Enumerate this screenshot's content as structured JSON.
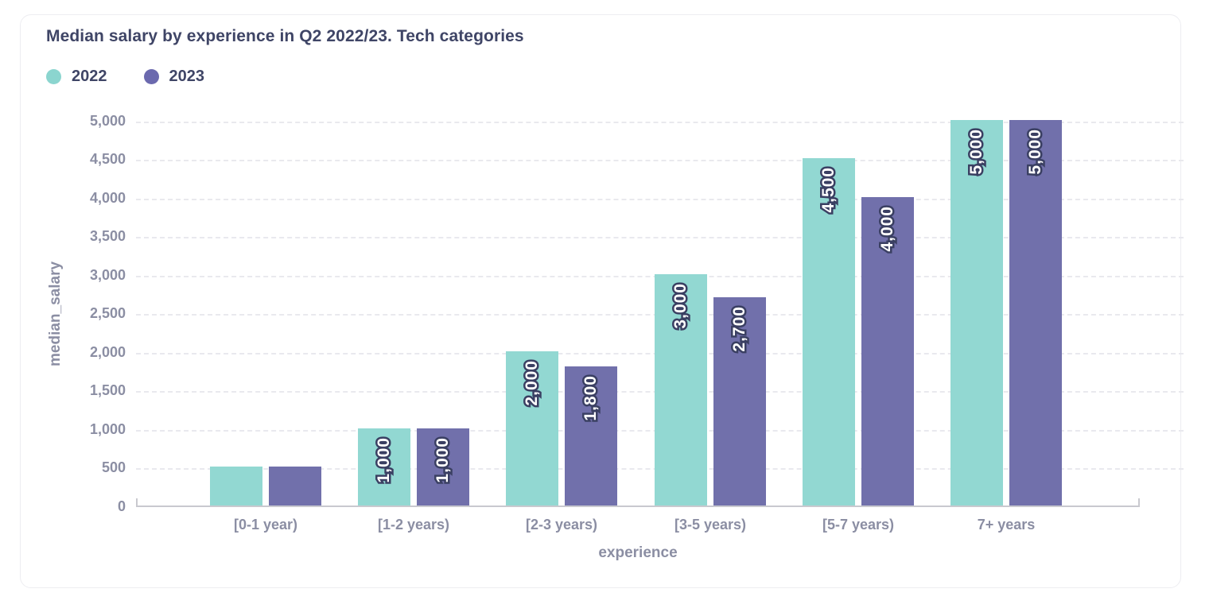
{
  "chart_data": {
    "type": "bar",
    "title": "Median salary by experience in Q2 2022/23. Tech categories",
    "xlabel": "experience",
    "ylabel": "median_salary",
    "categories": [
      "[0-1 year)",
      "[1-2 years)",
      "[2-3 years)",
      "[3-5 years)",
      "[5-7 years)",
      "7+ years"
    ],
    "series": [
      {
        "name": "2022",
        "color": "#92d8d2",
        "legend_color": "#8bd5cf",
        "values": [
          500,
          1000,
          2000,
          3000,
          4500,
          5000
        ],
        "bar_labels": [
          "",
          "1,000",
          "2,000",
          "3,000",
          "4,500",
          "5,000"
        ]
      },
      {
        "name": "2023",
        "color": "#7170ab",
        "legend_color": "#6b69ae",
        "values": [
          500,
          1000,
          1800,
          2700,
          4000,
          5000
        ],
        "bar_labels": [
          "",
          "1,000",
          "1,800",
          "2,700",
          "4,000",
          "5,000"
        ]
      }
    ],
    "ylim": [
      0,
      5000
    ],
    "ytick_step": 500,
    "ytick_labels": [
      "0",
      "500",
      "1,000",
      "1,500",
      "2,000",
      "2,500",
      "3,000",
      "3,500",
      "4,000",
      "4,500",
      "5,000"
    ],
    "grid": "dashed-horizontal",
    "legend_position": "top-left"
  },
  "colors": {
    "title_text": "#3f4566",
    "axis_text": "#8b8ea3",
    "grid": "#e9e9ee",
    "axis_line": "#c9c9cf",
    "bar_label_fill": "#ffffff",
    "bar_label_stroke": "#3b4063",
    "card_border": "#ededf1",
    "background": "#ffffff"
  }
}
